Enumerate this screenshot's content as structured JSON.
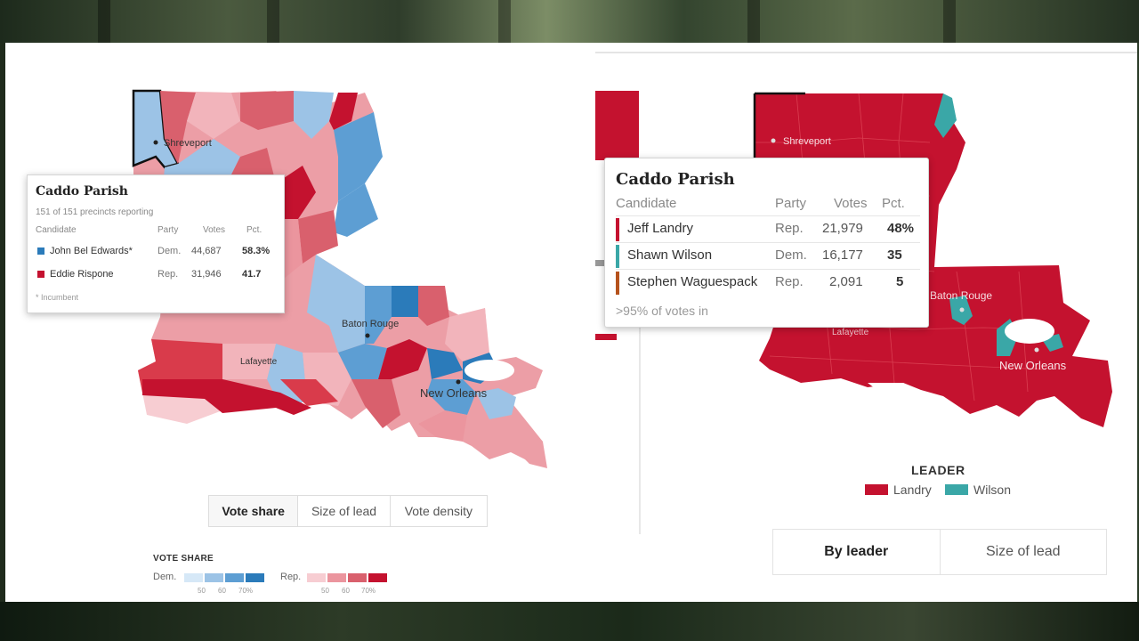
{
  "left_map": {
    "city_labels": {
      "shreveport": "Shreveport",
      "baton_rouge": "Baton Rouge",
      "lafayette": "Lafayette",
      "new_orleans": "New Orleans"
    },
    "popup": {
      "title": "Caddo Parish",
      "subtitle": "151 of 151 precincts reporting",
      "columns": {
        "candidate": "Candidate",
        "party": "Party",
        "votes": "Votes",
        "pct": "Pct."
      },
      "rows": [
        {
          "name": "John Bel Edwards*",
          "party": "Dem.",
          "votes": "44,687",
          "pct": "58.3%",
          "color": "#2b7bba"
        },
        {
          "name": "Eddie Rispone",
          "party": "Rep.",
          "votes": "31,946",
          "pct": "41.7",
          "color": "#c4122f"
        }
      ],
      "note": "* Incumbent"
    },
    "tabs": [
      {
        "label": "Vote share",
        "active": true
      },
      {
        "label": "Size of lead",
        "active": false
      },
      {
        "label": "Vote density",
        "active": false
      }
    ],
    "legend": {
      "title": "VOTE SHARE",
      "dem_label": "Dem.",
      "rep_label": "Rep.",
      "dem_colors": [
        "#d6e8f7",
        "#9cc3e6",
        "#5d9ed3",
        "#2b7bba"
      ],
      "rep_colors": [
        "#f7cdd2",
        "#eb959e",
        "#d9606d",
        "#c4122f"
      ],
      "ticks": [
        "50",
        "60",
        "70%"
      ]
    }
  },
  "right_map": {
    "city_labels": {
      "shreveport": "Shreveport",
      "baton_rouge": "Baton Rouge",
      "lafayette": "Lafayette",
      "new_orleans": "New Orleans"
    },
    "popup": {
      "title": "Caddo Parish",
      "columns": {
        "candidate": "Candidate",
        "party": "Party",
        "votes": "Votes",
        "pct": "Pct."
      },
      "rows": [
        {
          "name": "Jeff Landry",
          "party": "Rep.",
          "votes": "21,979",
          "pct": "48%",
          "color": "#c4122f"
        },
        {
          "name": "Shawn Wilson",
          "party": "Dem.",
          "votes": "16,177",
          "pct": "35",
          "color": "#3aa7a7"
        },
        {
          "name": "Stephen Waguespack",
          "party": "Rep.",
          "votes": "2,091",
          "pct": "5",
          "color": "#b5521c"
        }
      ],
      "note": ">95% of votes in"
    },
    "legend": {
      "title": "LEADER",
      "items": [
        {
          "label": "Landry",
          "color": "#c4122f"
        },
        {
          "label": "Wilson",
          "color": "#3aa7a7"
        }
      ]
    },
    "tabs": [
      {
        "label": "By leader",
        "active": true
      },
      {
        "label": "Size of lead",
        "active": false
      }
    ]
  }
}
